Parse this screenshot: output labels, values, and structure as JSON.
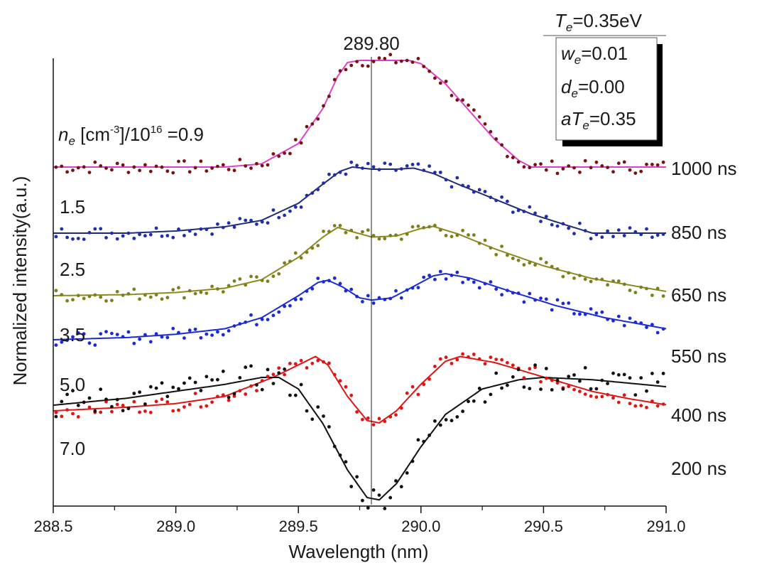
{
  "chart_data": {
    "type": "line",
    "xlabel": "Wavelength (nm)",
    "ylabel": "Normalized intensity(a.u.)",
    "xlim": [
      288.5,
      291.0
    ],
    "xticks": [
      "288.5",
      "289.0",
      "289.5",
      "290.0",
      "290.5",
      "291.0"
    ],
    "reference_line": {
      "x": 289.8,
      "label": "289.80"
    },
    "density_label": {
      "prefix": "n",
      "subscript": "e",
      "unit_a": " [cm",
      "unit_exp": "-3",
      "unit_b": "]/10",
      "exp": "16",
      "tail": " =0.9"
    },
    "params": {
      "Te": {
        "base": "T",
        "sub": "e",
        "val": "=0.35eV"
      },
      "we": {
        "base": "w",
        "sub": "e",
        "val": "=0.01"
      },
      "de": {
        "base": "d",
        "sub": "e",
        "val": "=0.00"
      },
      "aTe": {
        "base": "aT",
        "sub": "e",
        "val": "=0.35"
      }
    },
    "series": [
      {
        "time": "1000 ns",
        "ne": "0.9",
        "color": "#e040c8",
        "dot_color": "#7a1010",
        "offset": 0.9,
        "fit": [
          [
            288.5,
            0.0
          ],
          [
            289.2,
            0.0
          ],
          [
            289.35,
            0.03
          ],
          [
            289.5,
            0.22
          ],
          [
            289.6,
            0.55
          ],
          [
            289.66,
            0.85
          ],
          [
            289.7,
            0.98
          ],
          [
            289.75,
            1.0
          ],
          [
            289.8,
            1.0
          ],
          [
            289.95,
            1.0
          ],
          [
            290.0,
            0.97
          ],
          [
            290.1,
            0.78
          ],
          [
            290.2,
            0.52
          ],
          [
            290.3,
            0.26
          ],
          [
            290.4,
            0.06
          ],
          [
            290.45,
            0.0
          ],
          [
            291.0,
            0.0
          ]
        ]
      },
      {
        "time": "850 ns",
        "ne": "1.5",
        "color": "#1e2a7a",
        "dot_color": "#1e2fa8",
        "offset": 0.65,
        "fit": [
          [
            288.5,
            0.0
          ],
          [
            288.8,
            0.0
          ],
          [
            289.0,
            0.02
          ],
          [
            289.2,
            0.06
          ],
          [
            289.35,
            0.12
          ],
          [
            289.5,
            0.28
          ],
          [
            289.6,
            0.46
          ],
          [
            289.67,
            0.58
          ],
          [
            289.72,
            0.62
          ],
          [
            289.8,
            0.6
          ],
          [
            289.9,
            0.6
          ],
          [
            289.97,
            0.61
          ],
          [
            290.05,
            0.56
          ],
          [
            290.15,
            0.46
          ],
          [
            290.3,
            0.32
          ],
          [
            290.45,
            0.18
          ],
          [
            290.6,
            0.07
          ],
          [
            290.7,
            0.0
          ],
          [
            291.0,
            0.0
          ]
        ]
      },
      {
        "time": "650 ns",
        "ne": "2.5",
        "color": "#8a8a1e",
        "dot_color": "#7e7e1e",
        "offset": 0.4,
        "fit": [
          [
            288.5,
            0.0
          ],
          [
            288.8,
            0.01
          ],
          [
            289.0,
            0.03
          ],
          [
            289.2,
            0.07
          ],
          [
            289.35,
            0.15
          ],
          [
            289.5,
            0.36
          ],
          [
            289.6,
            0.55
          ],
          [
            289.66,
            0.64
          ],
          [
            289.72,
            0.6
          ],
          [
            289.8,
            0.55
          ],
          [
            289.9,
            0.56
          ],
          [
            290.0,
            0.63
          ],
          [
            290.05,
            0.65
          ],
          [
            290.15,
            0.58
          ],
          [
            290.3,
            0.44
          ],
          [
            290.5,
            0.28
          ],
          [
            290.7,
            0.16
          ],
          [
            291.0,
            0.04
          ]
        ]
      },
      {
        "time": "550 ns",
        "ne": "3.5",
        "color": "#1a2ad6",
        "dot_color": "#1a2ad6",
        "offset": 0.15,
        "fit": [
          [
            288.5,
            0.0
          ],
          [
            288.8,
            0.02
          ],
          [
            289.0,
            0.05
          ],
          [
            289.2,
            0.1
          ],
          [
            289.35,
            0.2
          ],
          [
            289.5,
            0.4
          ],
          [
            289.58,
            0.52
          ],
          [
            289.62,
            0.54
          ],
          [
            289.68,
            0.48
          ],
          [
            289.75,
            0.38
          ],
          [
            289.8,
            0.36
          ],
          [
            289.88,
            0.38
          ],
          [
            289.95,
            0.46
          ],
          [
            290.05,
            0.58
          ],
          [
            290.1,
            0.6
          ],
          [
            290.2,
            0.56
          ],
          [
            290.35,
            0.45
          ],
          [
            290.55,
            0.31
          ],
          [
            290.75,
            0.2
          ],
          [
            291.0,
            0.1
          ]
        ]
      },
      {
        "time": "400 ns",
        "ne": "5.0",
        "color": "#e01414",
        "dot_color": "#e01414",
        "offset": 0.0,
        "fit": [
          [
            288.5,
            0.0
          ],
          [
            288.8,
            0.03
          ],
          [
            289.0,
            0.06
          ],
          [
            289.2,
            0.12
          ],
          [
            289.4,
            0.28
          ],
          [
            289.5,
            0.38
          ],
          [
            289.57,
            0.45
          ],
          [
            289.62,
            0.38
          ],
          [
            289.7,
            0.12
          ],
          [
            289.78,
            -0.08
          ],
          [
            289.83,
            -0.1
          ],
          [
            289.9,
            0.0
          ],
          [
            290.0,
            0.22
          ],
          [
            290.1,
            0.41
          ],
          [
            290.16,
            0.45
          ],
          [
            290.3,
            0.4
          ],
          [
            290.5,
            0.28
          ],
          [
            290.7,
            0.16
          ],
          [
            290.85,
            0.1
          ],
          [
            291.0,
            0.05
          ]
        ]
      },
      {
        "time": "200 ns",
        "ne": "7.0",
        "color": "#111111",
        "dot_color": "#111111",
        "offset": 0.0,
        "fit": [
          [
            288.5,
            0.0
          ],
          [
            288.8,
            0.03
          ],
          [
            289.0,
            0.06
          ],
          [
            289.2,
            0.09
          ],
          [
            289.35,
            0.12
          ],
          [
            289.42,
            0.12
          ],
          [
            289.5,
            0.07
          ],
          [
            289.6,
            -0.08
          ],
          [
            289.7,
            -0.28
          ],
          [
            289.78,
            -0.4
          ],
          [
            289.83,
            -0.41
          ],
          [
            289.9,
            -0.34
          ],
          [
            290.0,
            -0.18
          ],
          [
            290.1,
            -0.04
          ],
          [
            290.25,
            0.07
          ],
          [
            290.4,
            0.11
          ],
          [
            290.5,
            0.12
          ],
          [
            290.7,
            0.11
          ],
          [
            291.0,
            0.08
          ]
        ]
      }
    ]
  }
}
